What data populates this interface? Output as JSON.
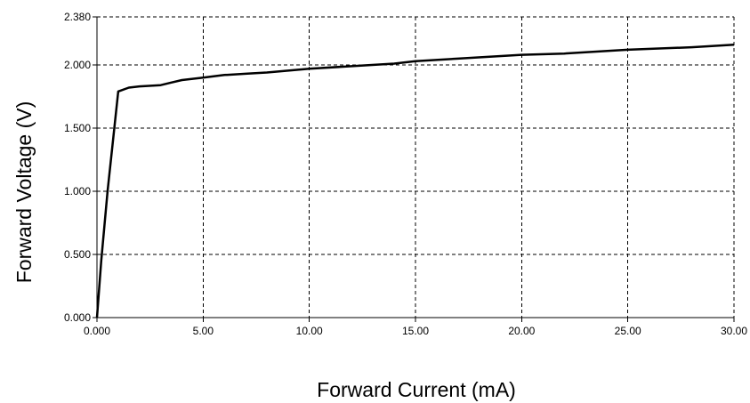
{
  "chart_data": {
    "type": "line",
    "title": "",
    "xlabel": "Forward Current (mA)",
    "ylabel": "Forward Voltage (V)",
    "xlim": [
      0,
      30
    ],
    "ylim": [
      0,
      2.38
    ],
    "grid": true,
    "grid_style": "dashed",
    "line_color": "#000000",
    "x_ticks": [
      0,
      5,
      10,
      15,
      20,
      25,
      30
    ],
    "x_tick_labels": [
      "0.000",
      "5.00",
      "10.00",
      "15.00",
      "20.00",
      "25.00",
      "30.00"
    ],
    "y_ticks": [
      0,
      0.5,
      1.0,
      1.5,
      2.0,
      2.38
    ],
    "y_tick_labels": [
      "0.000",
      "0.500",
      "1.000",
      "1.500",
      "2.000",
      "2.380"
    ],
    "series": [
      {
        "x": [
          0.0,
          0.2,
          0.5,
          1.0,
          1.5,
          2.0,
          3.0,
          3.5,
          4.0,
          5.0,
          6.0,
          7.0,
          8.0,
          10.0,
          12.0,
          14.0,
          15.0,
          17.0,
          20.0,
          22.0,
          25.0,
          28.0,
          30.0
        ],
        "y": [
          0.0,
          0.45,
          1.0,
          1.79,
          1.82,
          1.83,
          1.84,
          1.86,
          1.88,
          1.9,
          1.92,
          1.93,
          1.94,
          1.97,
          1.99,
          2.01,
          2.03,
          2.05,
          2.08,
          2.09,
          2.12,
          2.14,
          2.16
        ]
      }
    ]
  }
}
